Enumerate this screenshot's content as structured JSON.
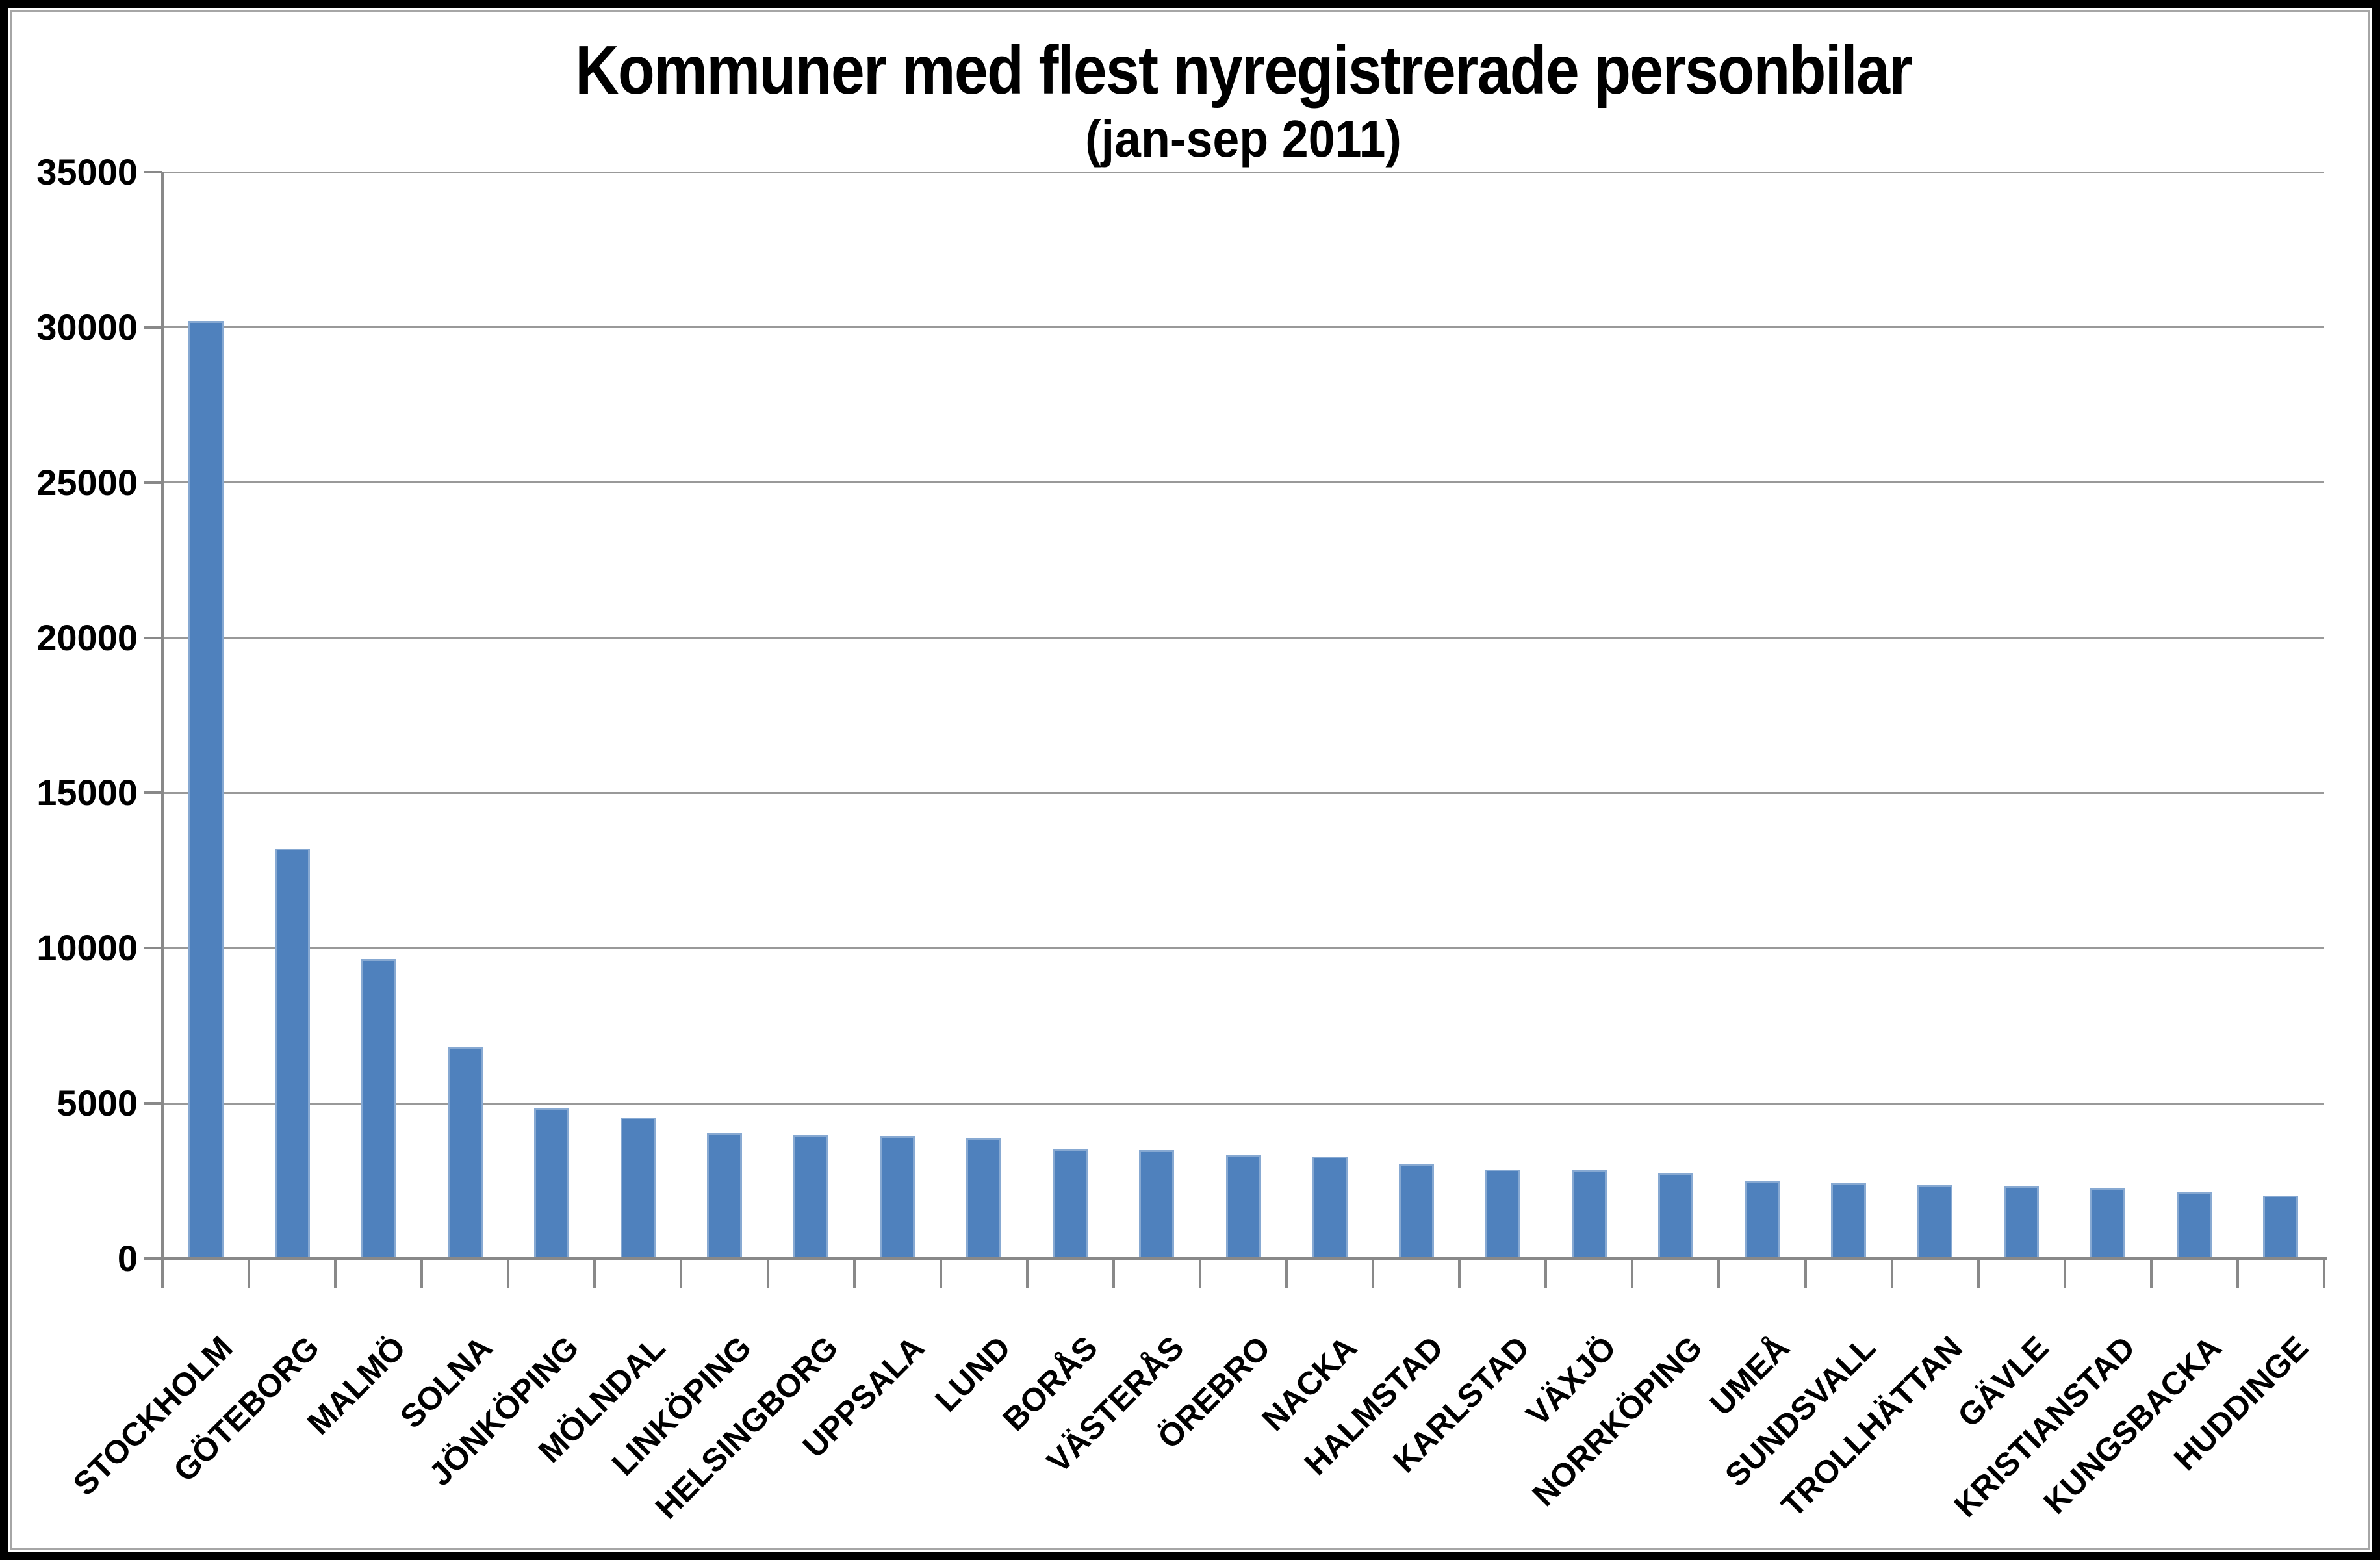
{
  "chart_data": {
    "type": "bar",
    "title": "Kommuner med flest nyregistrerade personbilar",
    "subtitle": "(jan-sep 2011)",
    "xlabel": "",
    "ylabel": "",
    "ylim": [
      0,
      35000
    ],
    "ytick_step": 5000,
    "ytick_labels": [
      "0",
      "5000",
      "10000",
      "15000",
      "20000",
      "25000",
      "30000",
      "35000"
    ],
    "grid": true,
    "legend": "none",
    "categories": [
      "STOCKHOLM",
      "GÖTEBORG",
      "MALMÖ",
      "SOLNA",
      "JÖNKÖPING",
      "MÖLNDAL",
      "LINKÖPING",
      "HELSINGBORG",
      "UPPSALA",
      "LUND",
      "BORÅS",
      "VÄSTERÅS",
      "ÖREBRO",
      "NACKA",
      "HALMSTAD",
      "KARLSTAD",
      "VÄXJÖ",
      "NORRKÖPING",
      "UMEÅ",
      "SUNDSVALL",
      "TROLLHÄTTAN",
      "GÄVLE",
      "KRISTIANSTAD",
      "KUNGSBACKA",
      "HUDDINGE"
    ],
    "values": [
      30200,
      13200,
      9650,
      6800,
      4850,
      4550,
      4050,
      3980,
      3960,
      3900,
      3520,
      3500,
      3350,
      3280,
      3040,
      2870,
      2850,
      2740,
      2510,
      2420,
      2360,
      2340,
      2260,
      2130,
      2040
    ]
  },
  "colors": {
    "bar": "#4F81BD",
    "gridline": "#999999",
    "axis": "#898989",
    "text": "#000000",
    "frame": "#000000",
    "inner_line": "#A6A6A6",
    "background": "#FFFFFF"
  }
}
